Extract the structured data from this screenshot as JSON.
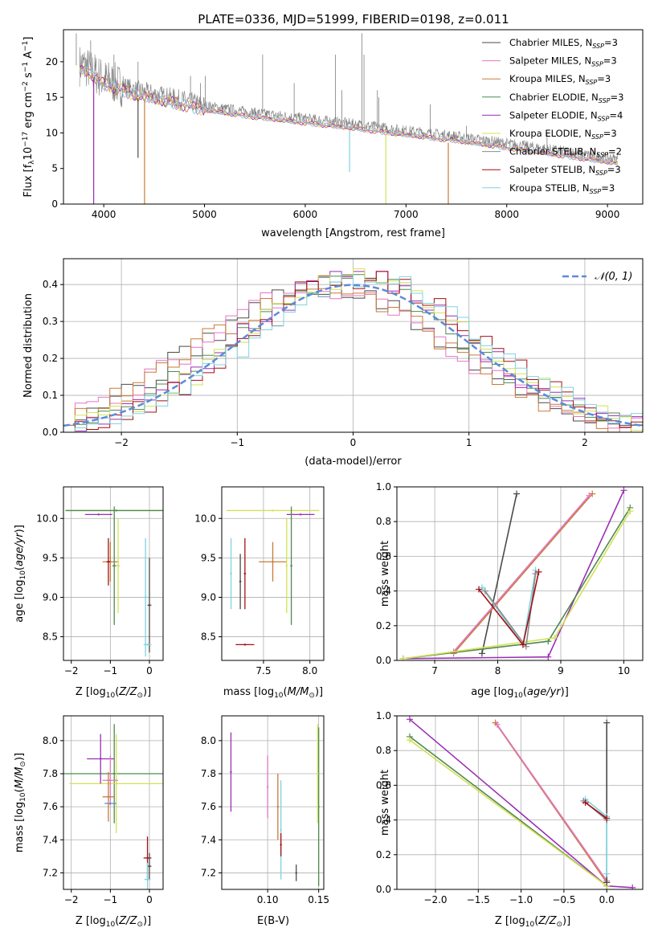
{
  "figure_title": "PLATE=0336, MJD=51999, FIBERID=0198, z=0.011",
  "colors": {
    "data": "#7f7f7f",
    "Chabrier MILES": "#4a4a4a",
    "Salpeter MILES": "#e377c2",
    "Kroupa MILES": "#c97a3a",
    "Chabrier ELODIE": "#4f8a4f",
    "Salpeter ELODIE": "#9b2fb5",
    "Kroupa ELODIE": "#d4e157",
    "Chabrier STELIB": "#8c8c8c",
    "Salpeter STELIB": "#a50f15",
    "Kroupa STELIB": "#7fd3e0",
    "gauss": "#5b8bd9"
  },
  "chart_data": [
    {
      "id": "spectrum",
      "type": "line",
      "xlabel": "wavelength [Angstrom, rest frame]",
      "ylabel": "Flux [f_λ 10^-17 erg cm^-2 s^-1 A^-1]",
      "xlim": [
        3600,
        9350
      ],
      "ylim": [
        0,
        24.5
      ],
      "xticks": [
        4000,
        5000,
        6000,
        7000,
        8000,
        9000
      ],
      "yticks": [
        0,
        5,
        10,
        15,
        20
      ],
      "legend": [
        "Chabrier MILES, N_SSP=3",
        "Salpeter MILES, N_SSP=3",
        "Kroupa MILES, N_SSP=3",
        "Chabrier ELODIE, N_SSP=3",
        "Salpeter ELODIE, N_SSP=4",
        "Kroupa ELODIE, N_SSP=3",
        "Chabrier STELIB, N_SSP=2",
        "Salpeter STELIB, N_SSP=3",
        "Kroupa STELIB, N_SSP=3"
      ],
      "legend_placement": "upper right",
      "continuum": {
        "x": [
          3800,
          4000,
          4300,
          4800,
          5000,
          5500,
          6000,
          6500,
          7000,
          7500,
          8000,
          8500,
          9100
        ],
        "y": [
          19.5,
          17.5,
          16.0,
          14.5,
          13.8,
          12.8,
          12.0,
          11.2,
          10.3,
          9.5,
          8.5,
          7.5,
          6.3
        ]
      },
      "emission_lines": [
        {
          "x": 3727,
          "y": 24
        },
        {
          "x": 3870,
          "y": 23
        },
        {
          "x": 4101,
          "y": 21
        },
        {
          "x": 4340,
          "y": 20
        },
        {
          "x": 4861,
          "y": 18
        },
        {
          "x": 4959,
          "y": 17
        },
        {
          "x": 5007,
          "y": 18
        },
        {
          "x": 5577,
          "y": 21
        },
        {
          "x": 5890,
          "y": 17
        },
        {
          "x": 6300,
          "y": 21
        },
        {
          "x": 6363,
          "y": 16
        },
        {
          "x": 6563,
          "y": 24
        },
        {
          "x": 6583,
          "y": 21
        },
        {
          "x": 6716,
          "y": 16
        },
        {
          "x": 6731,
          "y": 15
        },
        {
          "x": 7240,
          "y": 14
        },
        {
          "x": 7600,
          "y": 11
        },
        {
          "x": 8400,
          "y": 10
        }
      ],
      "model_dips": [
        {
          "series": "Salpeter ELODIE",
          "x": 3900,
          "y": 0
        },
        {
          "series": "Kroupa MILES",
          "x": 4405,
          "y": 0
        },
        {
          "series": "Kroupa ELODIE",
          "x": 6800,
          "y": 0
        },
        {
          "series": "Kroupa MILES",
          "x": 7420,
          "y": 0
        },
        {
          "series": "Chabrier MILES",
          "x": 4340,
          "y": 6.5
        },
        {
          "series": "Kroupa STELIB",
          "x": 6440,
          "y": 4.5
        }
      ]
    },
    {
      "id": "residuals",
      "type": "step",
      "xlabel": "(data-model)/error",
      "ylabel": "Normed distribution",
      "xlim": [
        -2.5,
        2.5
      ],
      "ylim": [
        0,
        0.47
      ],
      "xticks": [
        -2,
        -1,
        0,
        1,
        2
      ],
      "yticks": [
        0.0,
        0.1,
        0.2,
        0.3,
        0.4
      ],
      "gauss_label": "𝒩(0, 1)",
      "legend_placement": "upper right"
    },
    {
      "id": "age-vs-Z",
      "type": "errorbar",
      "xlabel": "Z [log10(Z/Z☉)]",
      "ylabel": "age  [log10(age/yr)]",
      "xlim": [
        -2.2,
        0.35
      ],
      "ylim": [
        8.2,
        10.4
      ],
      "xticks": [
        -2,
        -1,
        0
      ],
      "yticks": [
        8.5,
        9.0,
        9.5,
        10.0
      ],
      "points": [
        {
          "series": "Kroupa ELODIE",
          "x": -0.85,
          "xerr": 1.3,
          "y": 10.1,
          "yerr": 0
        },
        {
          "series": "Chabrier ELODIE",
          "x": -0.85,
          "xerr": 1.3,
          "y": 10.1,
          "yerr": 0
        },
        {
          "series": "Salpeter ELODIE",
          "x": -1.3,
          "xerr": 0.35,
          "y": 10.05,
          "yerr": 0
        },
        {
          "series": "Kroupa MILES",
          "x": -1.0,
          "xerr": 0.2,
          "y": 9.45,
          "yerr": 0.25
        },
        {
          "series": "Salpeter STELIB",
          "x": -1.05,
          "xerr": 0.05,
          "y": 9.45,
          "yerr": 0.3
        },
        {
          "series": "Kroupa ELODIE",
          "x": -0.8,
          "xerr": 0.05,
          "y": 9.4,
          "yerr": 0.6
        },
        {
          "series": "Chabrier ELODIE",
          "x": -0.9,
          "xerr": 0.05,
          "y": 9.4,
          "yerr": 0.75
        },
        {
          "series": "Kroupa STELIB",
          "x": -0.1,
          "xerr": 0.05,
          "y": 9.0,
          "yerr": 0.75
        },
        {
          "series": "Chabrier MILES",
          "x": 0.0,
          "xerr": 0.05,
          "y": 8.9,
          "yerr": 0.6
        },
        {
          "series": "Kroupa STELIB",
          "x": -0.05,
          "xerr": 0.1,
          "y": 8.4,
          "yerr": 0
        }
      ]
    },
    {
      "id": "age-vs-mass",
      "type": "errorbar",
      "xlabel": "mass [log10(M/M☉)]",
      "ylabel": "",
      "xlim": [
        7.05,
        8.15
      ],
      "ylim": [
        8.2,
        10.4
      ],
      "xticks": [
        7.5,
        8.0
      ],
      "yticks": [
        8.5,
        9.0,
        9.5,
        10.0
      ],
      "points": [
        {
          "series": "Kroupa ELODIE",
          "x": 7.6,
          "xerr": 0.5,
          "y": 10.1,
          "yerr": 0
        },
        {
          "series": "Salpeter ELODIE",
          "x": 7.9,
          "xerr": 0.15,
          "y": 10.05,
          "yerr": 0
        },
        {
          "series": "Kroupa MILES",
          "x": 7.6,
          "xerr": 0.15,
          "y": 9.45,
          "yerr": 0.25
        },
        {
          "series": "Salpeter STELIB",
          "x": 7.3,
          "xerr": 0.01,
          "y": 9.3,
          "yerr": 0.45
        },
        {
          "series": "Chabrier MILES",
          "x": 7.25,
          "xerr": 0.01,
          "y": 9.2,
          "yerr": 0.35
        },
        {
          "series": "Kroupa STELIB",
          "x": 7.15,
          "xerr": 0.01,
          "y": 9.3,
          "yerr": 0.45
        },
        {
          "series": "Kroupa ELODIE",
          "x": 7.75,
          "xerr": 0.01,
          "y": 9.4,
          "yerr": 0.6
        },
        {
          "series": "Chabrier ELODIE",
          "x": 7.8,
          "xerr": 0.01,
          "y": 9.4,
          "yerr": 0.75
        },
        {
          "series": "Salpeter STELIB",
          "x": 7.3,
          "xerr": 0.1,
          "y": 8.4,
          "yerr": 0
        }
      ]
    },
    {
      "id": "weight-vs-age",
      "type": "line",
      "xlabel": "age  [log10(age/yr)]",
      "ylabel": "mass weight",
      "xlim": [
        6.4,
        10.3
      ],
      "ylim": [
        0,
        1.0
      ],
      "xticks": [
        7,
        8,
        9,
        10
      ],
      "yticks": [
        0.0,
        0.2,
        0.4,
        0.6,
        0.8,
        1.0
      ],
      "series": [
        {
          "name": "Chabrier MILES",
          "x": [
            7.75,
            8.3
          ],
          "y": [
            0.04,
            0.96
          ]
        },
        {
          "name": "Kroupa MILES",
          "x": [
            7.3,
            9.5
          ],
          "y": [
            0.04,
            0.96
          ]
        },
        {
          "name": "Salpeter MILES",
          "x": [
            7.3,
            9.45
          ],
          "y": [
            0.05,
            0.95
          ]
        },
        {
          "name": "Salpeter ELODIE",
          "x": [
            6.5,
            8.8,
            10.0
          ],
          "y": [
            0.01,
            0.02,
            0.98
          ]
        },
        {
          "name": "Chabrier ELODIE",
          "x": [
            6.5,
            8.8,
            10.1
          ],
          "y": [
            0.01,
            0.11,
            0.88
          ]
        },
        {
          "name": "Kroupa ELODIE",
          "x": [
            6.5,
            8.9,
            10.1
          ],
          "y": [
            0.01,
            0.13,
            0.86
          ]
        },
        {
          "name": "Kroupa STELIB",
          "x": [
            7.75,
            8.4,
            8.6
          ],
          "y": [
            0.42,
            0.09,
            0.52
          ]
        },
        {
          "name": "Chabrier STELIB",
          "x": [
            7.8,
            8.45,
            8.6
          ],
          "y": [
            0.4,
            0.08,
            0.5
          ]
        },
        {
          "name": "Salpeter STELIB",
          "x": [
            7.7,
            8.4,
            8.65
          ],
          "y": [
            0.41,
            0.09,
            0.51
          ]
        }
      ]
    },
    {
      "id": "mass-vs-Z",
      "type": "errorbar",
      "xlabel": "Z [log10(Z/Z☉)]",
      "ylabel": "mass [log10(M/M☉)]",
      "xlim": [
        -2.2,
        0.35
      ],
      "ylim": [
        7.1,
        8.15
      ],
      "xticks": [
        -2,
        -1,
        0
      ],
      "yticks": [
        7.2,
        7.4,
        7.6,
        7.8,
        8.0
      ],
      "points": [
        {
          "series": "Chabrier ELODIE",
          "x": -0.9,
          "xerr": 1.3,
          "y": 7.8,
          "yerr": 0.3
        },
        {
          "series": "Kroupa ELODIE",
          "x": -0.85,
          "xerr": 1.2,
          "y": 7.74,
          "yerr": 0.3
        },
        {
          "series": "Salpeter ELODIE",
          "x": -1.25,
          "xerr": 0.35,
          "y": 7.89,
          "yerr": 0.15
        },
        {
          "series": "Salpeter MILES",
          "x": -1.0,
          "xerr": 0.2,
          "y": 7.76,
          "yerr": 0.15
        },
        {
          "series": "Kroupa MILES",
          "x": -1.05,
          "xerr": 0.15,
          "y": 7.66,
          "yerr": 0.15
        },
        {
          "series": "Gauss",
          "x": -1.0,
          "xerr": 0.15,
          "y": 7.62,
          "yerr": 0.0
        },
        {
          "series": "Salpeter STELIB",
          "x": -0.05,
          "xerr": 0.1,
          "y": 7.29,
          "yerr": 0.13
        },
        {
          "series": "Chabrier MILES",
          "x": 0.0,
          "xerr": 0.05,
          "y": 7.24,
          "yerr": 0.08
        },
        {
          "series": "Kroupa STELIB",
          "x": -0.05,
          "xerr": 0.08,
          "y": 7.16,
          "yerr": 0.1
        }
      ]
    },
    {
      "id": "mass-vs-EBV",
      "type": "errorbar",
      "xlabel": "E(B-V)",
      "ylabel": "",
      "xlim": [
        0.055,
        0.155
      ],
      "ylim": [
        7.1,
        8.15
      ],
      "xticks": [
        0.1,
        0.15
      ],
      "yticks": [
        7.2,
        7.4,
        7.6,
        7.8,
        8.0
      ],
      "points": [
        {
          "series": "Salpeter ELODIE",
          "x": 0.064,
          "yerr": 0.24,
          "y": 7.81
        },
        {
          "series": "Salpeter MILES",
          "x": 0.1,
          "yerr": 0.19,
          "y": 7.72
        },
        {
          "series": "Kroupa MILES",
          "x": 0.11,
          "yerr": 0.2,
          "y": 7.6
        },
        {
          "series": "Kroupa STELIB",
          "x": 0.113,
          "yerr": 0.3,
          "y": 7.46
        },
        {
          "series": "Salpeter STELIB",
          "x": 0.113,
          "yerr": 0.07,
          "y": 7.37
        },
        {
          "series": "Chabrier MILES",
          "x": 0.128,
          "yerr": 0.05,
          "y": 7.2
        },
        {
          "series": "Chabrier ELODIE",
          "x": 0.15,
          "yerr": 0.48,
          "y": 7.6
        },
        {
          "series": "Kroupa ELODIE",
          "x": 0.149,
          "yerr": 0.3,
          "y": 7.8
        }
      ]
    },
    {
      "id": "weight-vs-Z",
      "type": "line",
      "xlabel": "Z [log10(Z/Z☉)]",
      "ylabel": "mass weight",
      "xlim": [
        -2.45,
        0.42
      ],
      "ylim": [
        0,
        1.0
      ],
      "xticks": [
        -2.0,
        -1.5,
        -1.0,
        -0.5,
        0.0
      ],
      "yticks": [
        0.0,
        0.2,
        0.4,
        0.6,
        0.8,
        1.0
      ],
      "series": [
        {
          "name": "Salpeter ELODIE",
          "x": [
            -2.3,
            0.0,
            0.3
          ],
          "y": [
            0.98,
            0.02,
            0.01
          ]
        },
        {
          "name": "Chabrier ELODIE",
          "x": [
            -2.3,
            0.0
          ],
          "y": [
            0.88,
            0.02
          ]
        },
        {
          "name": "Kroupa ELODIE",
          "x": [
            -2.3,
            0.0
          ],
          "y": [
            0.86,
            0.02
          ]
        },
        {
          "name": "Kroupa MILES",
          "x": [
            -1.3,
            0.0
          ],
          "y": [
            0.96,
            0.04
          ]
        },
        {
          "name": "Salpeter MILES",
          "x": [
            -1.28,
            0.0
          ],
          "y": [
            0.95,
            0.05
          ]
        },
        {
          "name": "Chabrier MILES",
          "x": [
            0.0,
            0.0
          ],
          "y": [
            0.96,
            0.04
          ]
        },
        {
          "name": "Kroupa STELIB",
          "x": [
            -0.25,
            0.0,
            0.0
          ],
          "y": [
            0.52,
            0.42,
            0.09
          ]
        },
        {
          "name": "Chabrier STELIB",
          "x": [
            -0.27,
            0.0
          ],
          "y": [
            0.51,
            0.4
          ]
        },
        {
          "name": "Salpeter STELIB",
          "x": [
            -0.25,
            0.0
          ],
          "y": [
            0.5,
            0.41
          ]
        }
      ]
    }
  ]
}
